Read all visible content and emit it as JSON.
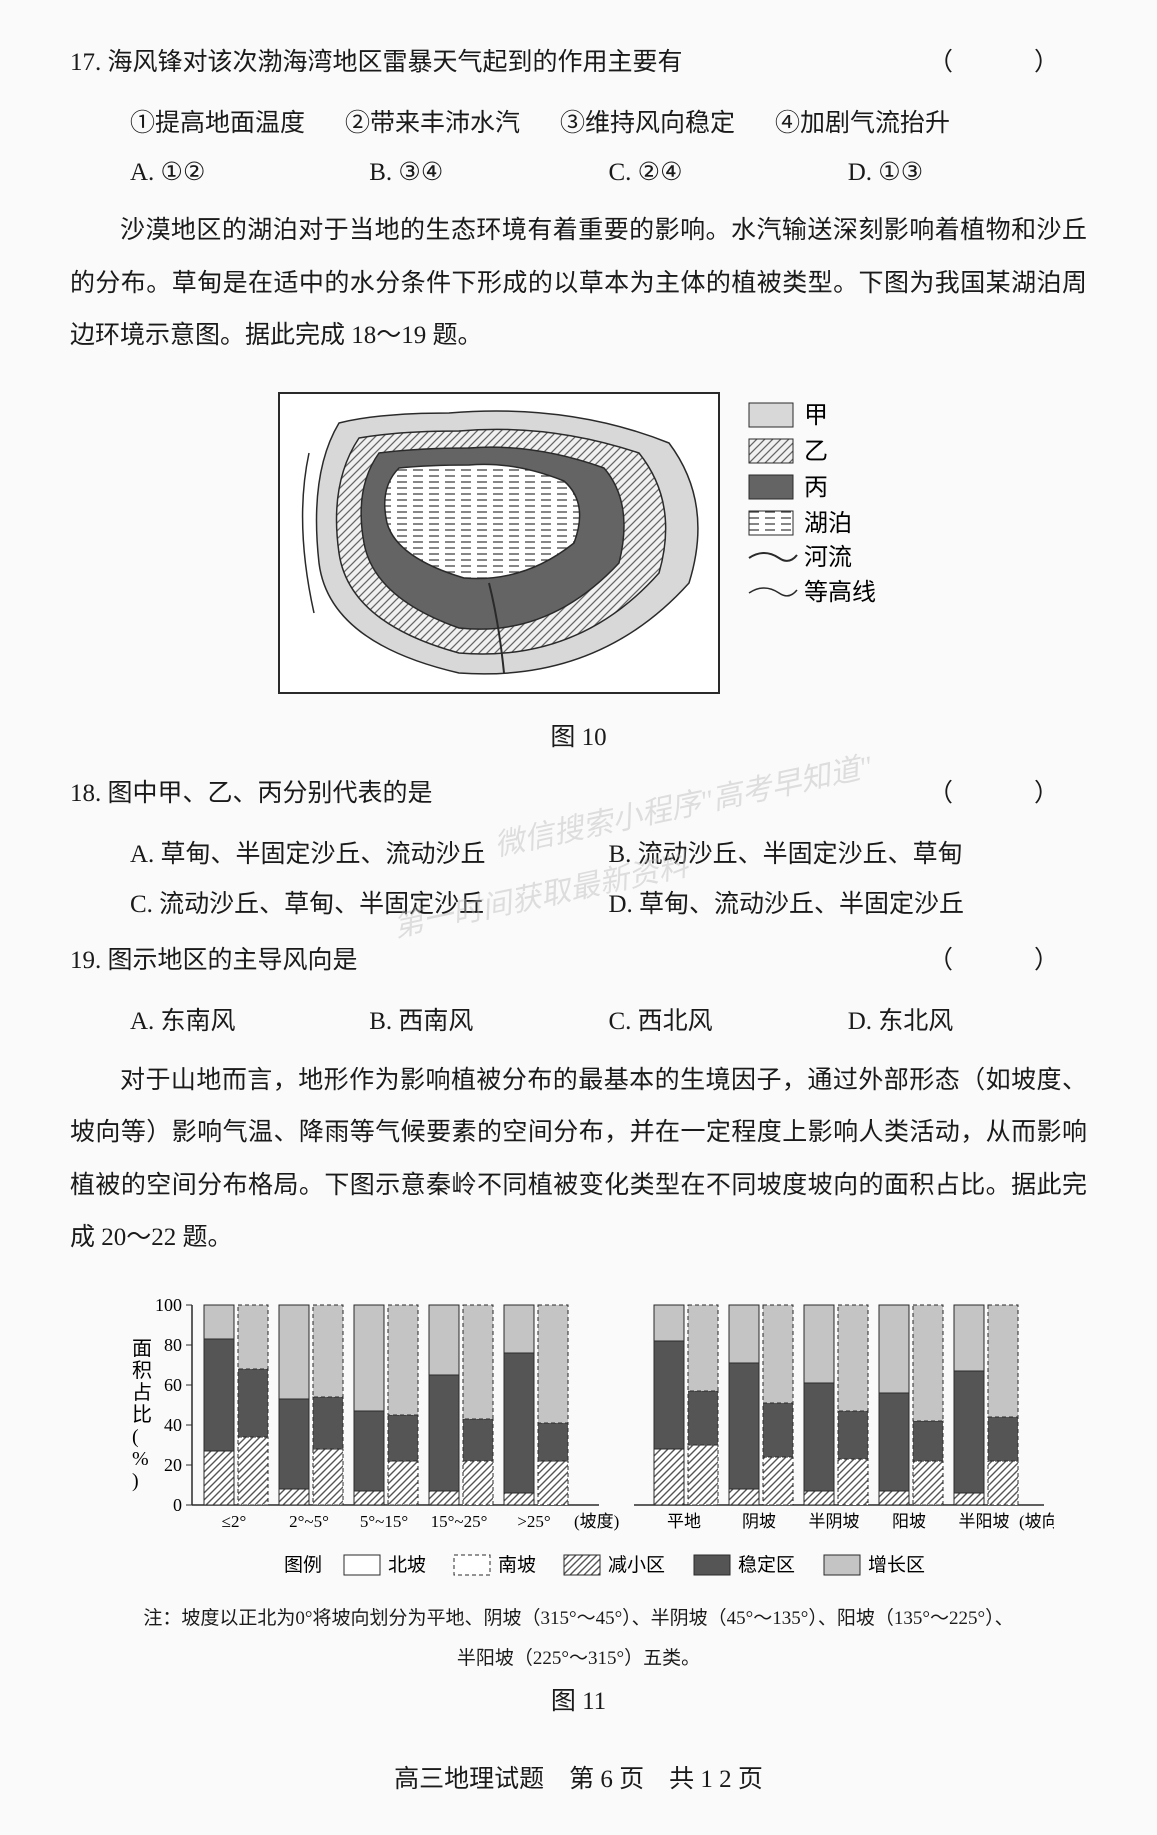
{
  "q17": {
    "number": "17.",
    "stem": "海风锋对该次渤海湾地区雷暴天气起到的作用主要有",
    "bracket": "（　）",
    "statements": [
      "①提高地面温度",
      "②带来丰沛水汽",
      "③维持风向稳定",
      "④加剧气流抬升"
    ],
    "options": [
      "A. ①②",
      "B. ③④",
      "C. ②④",
      "D. ①③"
    ]
  },
  "passage1": "沙漠地区的湖泊对于当地的生态环境有着重要的影响。水汽输送深刻影响着植物和沙丘的分布。草甸是在适中的水分条件下形成的以草本为主体的植被类型。下图为我国某湖泊周边环境示意图。据此完成 18～19 题。",
  "fig10": {
    "caption": "图 10",
    "legend": [
      "甲",
      "乙",
      "丙",
      "湖泊",
      "河流",
      "等高线"
    ],
    "colors": {
      "jia": "#d8d8d8",
      "yi_pattern": "#888888",
      "bing": "#646464",
      "lake_lines": "#555555",
      "border": "#2a2a2a",
      "bg": "#ffffff"
    }
  },
  "q18": {
    "number": "18.",
    "stem": "图中甲、乙、丙分别代表的是",
    "bracket": "（　）",
    "options": [
      "A. 草甸、半固定沙丘、流动沙丘",
      "B. 流动沙丘、半固定沙丘、草甸",
      "C. 流动沙丘、草甸、半固定沙丘",
      "D. 草甸、流动沙丘、半固定沙丘"
    ]
  },
  "q19": {
    "number": "19.",
    "stem": "图示地区的主导风向是",
    "bracket": "（　）",
    "options": [
      "A. 东南风",
      "B. 西南风",
      "C. 西北风",
      "D. 东北风"
    ]
  },
  "passage2": "对于山地而言，地形作为影响植被分布的最基本的生境因子，通过外部形态（如坡度、坡向等）影响气温、降雨等气候要素的空间分布，并在一定程度上影响人类活动，从而影响植被的空间分布格局。下图示意秦岭不同植被变化类型在不同坡度坡向的面积占比。据此完成 20～22 题。",
  "fig11": {
    "caption": "图 11",
    "y_label": "面积占比(%)",
    "y_ticks": [
      0,
      20,
      40,
      60,
      80,
      100
    ],
    "left_x_labels": [
      "≤2°",
      "2°~5°",
      "5°~15°",
      "15°~25°",
      ">25°"
    ],
    "left_x_axis": "(坡度)",
    "right_x_labels": [
      "平地",
      "阴坡",
      "半阴坡",
      "阳坡",
      "半阳坡"
    ],
    "right_x_axis": "(坡向)",
    "legend_title": "图例",
    "legend_items": [
      "北坡",
      "南坡",
      "减小区",
      "稳定区",
      "增长区"
    ],
    "note1": "注：坡度以正北为0°将坡向划分为平地、阴坡（315°～45°）、半阴坡（45°～135°）、阳坡（135°～225°）、",
    "note2": "半阳坡（225°～315°）五类。",
    "colors": {
      "decrease": "#888888",
      "stable": "#555555",
      "growth": "#c4c4c4",
      "north_border": "#2a2a2a",
      "south_border": "#2a2a2a",
      "axis": "#2a2a2a",
      "bg": "#ffffff"
    },
    "left_data": {
      "north": {
        "decrease": [
          27,
          8,
          7,
          7,
          6
        ],
        "stable": [
          56,
          45,
          40,
          58,
          70
        ],
        "growth": [
          17,
          47,
          53,
          35,
          24
        ]
      },
      "south": {
        "decrease": [
          34,
          28,
          22,
          22,
          22
        ],
        "stable": [
          34,
          26,
          23,
          21,
          19
        ],
        "growth": [
          32,
          46,
          55,
          57,
          59
        ]
      }
    },
    "right_data": {
      "north": {
        "decrease": [
          28,
          8,
          7,
          7,
          6
        ],
        "stable": [
          54,
          63,
          54,
          49,
          61
        ],
        "growth": [
          18,
          29,
          39,
          44,
          33
        ]
      },
      "south": {
        "decrease": [
          30,
          24,
          23,
          22,
          22
        ],
        "stable": [
          27,
          27,
          24,
          20,
          22
        ],
        "growth": [
          43,
          49,
          53,
          58,
          56
        ]
      }
    }
  },
  "footer": "高三地理试题　第 6 页　共 1 2 页",
  "watermarks": [
    "微信搜索小程序\"高考早知道\"",
    "第一时间获取最新资料"
  ]
}
